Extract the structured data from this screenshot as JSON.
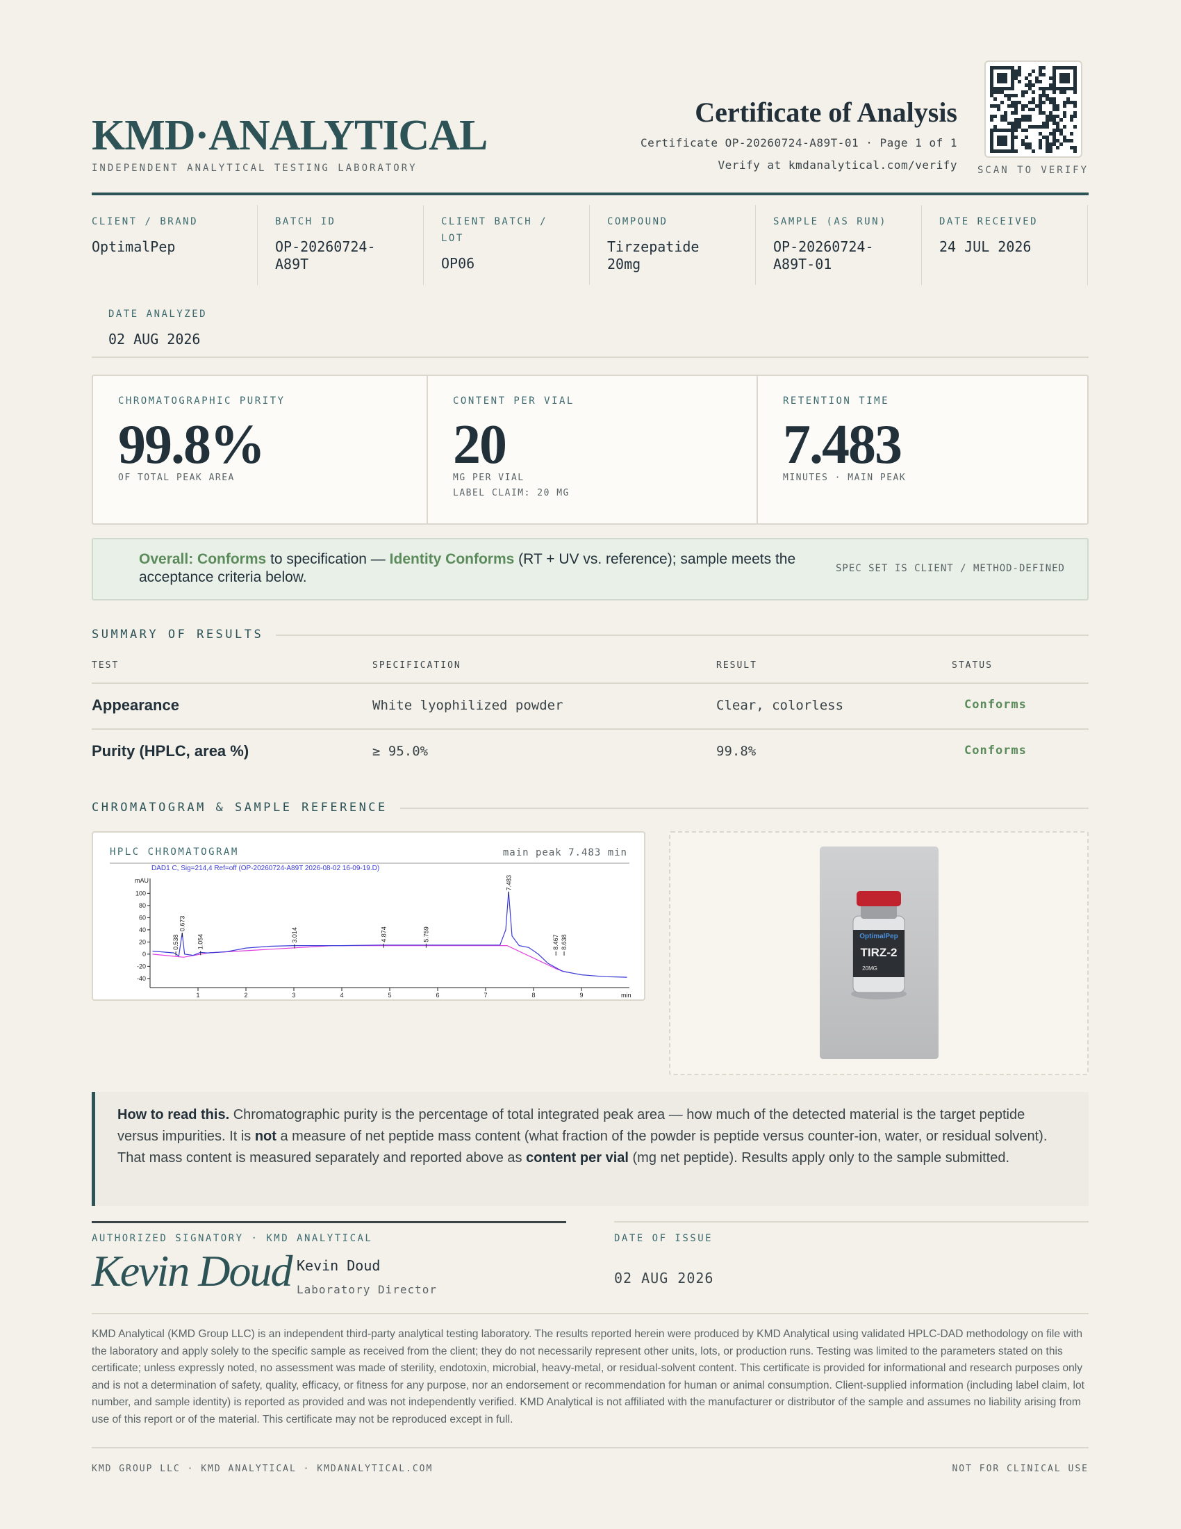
{
  "header": {
    "brand": "KMD·ANALYTICAL",
    "tagline": "INDEPENDENT ANALYTICAL TESTING LABORATORY",
    "title": "Certificate of Analysis",
    "certificate_line": "Certificate OP-20260724-A89T-01 · Page 1 of 1",
    "verify_line": "Verify at kmdanalytical.com/verify",
    "qr_caption": "SCAN TO VERIFY"
  },
  "info": [
    {
      "label": "CLIENT / BRAND",
      "value": "OptimalPep"
    },
    {
      "label": "BATCH ID",
      "value": "OP-20260724-A89T"
    },
    {
      "label": "CLIENT BATCH / LOT",
      "value": "OP06"
    },
    {
      "label": "COMPOUND",
      "value": "Tirzepatide 20mg"
    },
    {
      "label": "SAMPLE (AS RUN)",
      "value": "OP-20260724-A89T-01"
    },
    {
      "label": "DATE RECEIVED",
      "value": "24 JUL 2026"
    },
    {
      "label": "DATE ANALYZED",
      "value": "02 AUG 2026"
    }
  ],
  "metrics": [
    {
      "label": "CHROMATOGRAPHIC PURITY",
      "value": "99.8%",
      "notes": [
        "OF TOTAL PEAK AREA"
      ]
    },
    {
      "label": "CONTENT PER VIAL",
      "value": "20",
      "notes": [
        "MG PER VIAL",
        "LABEL CLAIM: 20 MG"
      ]
    },
    {
      "label": "RETENTION TIME",
      "value": "7.483",
      "notes": [
        "MINUTES · MAIN PEAK"
      ]
    }
  ],
  "verdict": {
    "overall": "Overall: Conforms",
    "text_1": "to specification —",
    "identity": "Identity Conforms",
    "text_2": "(RT + UV vs. reference); sample meets the acceptance criteria below.",
    "side_note": "SPEC SET IS CLIENT / METHOD-DEFINED"
  },
  "summary": {
    "heading": "SUMMARY OF RESULTS",
    "columns": [
      "TEST",
      "SPECIFICATION",
      "RESULT",
      "STATUS"
    ],
    "rows": [
      [
        "Appearance",
        "White lyophilized powder",
        "Clear, colorless",
        "Conforms"
      ],
      [
        "Purity (HPLC, area %)",
        "≥ 95.0%",
        "99.8%",
        "Conforms"
      ]
    ]
  },
  "chromatogram_section": {
    "heading": "CHROMATOGRAM & SAMPLE REFERENCE",
    "card_title": "HPLC CHROMATOGRAM",
    "card_note": "main peak 7.483 min",
    "plot": {
      "signal": "DAD1 C, Sig=214,4 Ref=off (OP-20260724-A89T 2026-08-02 16-09-19.D)",
      "y_unit": "mAU",
      "x_unit": "min",
      "xlim": [
        0,
        10
      ],
      "ylim": [
        -55,
        145
      ],
      "yticks": [
        100,
        80,
        60,
        40,
        20,
        0,
        -20,
        -40
      ],
      "xticks": [
        1,
        2,
        3,
        4,
        5,
        6,
        7,
        8,
        9
      ],
      "peaks": [
        0.538,
        0.673,
        1.054,
        3.014,
        4.874,
        5.759,
        7.483,
        8.467,
        8.638
      ],
      "trace": {
        "color": "#3b3bd6",
        "x": [
          0.05,
          0.5,
          0.6,
          0.67,
          0.72,
          0.9,
          1.05,
          1.2,
          1.6,
          2,
          2.5,
          3,
          4,
          4.8,
          5.5,
          6.5,
          7.3,
          7.42,
          7.48,
          7.55,
          7.7,
          7.9,
          8.1,
          8.3,
          8.6,
          9,
          9.5,
          9.95
        ],
        "y": [
          5,
          2,
          -3,
          35,
          0,
          -2,
          3,
          2,
          4,
          10,
          13,
          14,
          14,
          15,
          15,
          15,
          15,
          40,
          103,
          30,
          14,
          11,
          0,
          -15,
          -28,
          -34,
          -37,
          -38
        ]
      },
      "baseline": {
        "color": "#e040e0",
        "x": [
          0.05,
          0.7,
          1.2,
          3.8,
          7.45,
          8.5,
          8.7
        ],
        "y": [
          0,
          -5,
          2,
          14,
          14,
          -25,
          -30
        ]
      }
    },
    "sample_label": {
      "brand": "OptimalPep",
      "product": "TIRZ-2",
      "dose": "20MG"
    }
  },
  "note": {
    "lead": "How to read this.",
    "text_1": "Chromatographic purity is the percentage of total integrated peak area — how much of the detected material is the target peptide versus impurities. It is",
    "bold_1": "not",
    "text_2": "a measure of net peptide mass content (what fraction of the powder is peptide versus counter-ion, water, or residual solvent). That mass content is measured separately and reported above as",
    "bold_2": "content per vial",
    "text_3": "(mg net peptide). Results apply only to the sample submitted."
  },
  "signature": {
    "heading": "AUTHORIZED SIGNATORY · KMD ANALYTICAL",
    "script": "Kevin Doud",
    "name": "Kevin Doud",
    "role": "Laboratory Director",
    "date_heading": "DATE OF ISSUE",
    "date": "02 AUG 2026"
  },
  "disclaimer": "KMD Analytical (KMD Group LLC) is an independent third-party analytical testing laboratory. The results reported herein were produced by KMD Analytical using validated HPLC-DAD methodology on file with the laboratory and apply solely to the specific sample as received from the client; they do not necessarily represent other units, lots, or production runs. Testing was limited to the parameters stated on this certificate; unless expressly noted, no assessment was made of sterility, endotoxin, microbial, heavy-metal, or residual-solvent content. This certificate is provided for informational and research purposes only and is not a determination of safety, quality, efficacy, or fitness for any purpose, nor an endorsement or recommendation for human or animal consumption. Client-supplied information (including label claim, lot number, and sample identity) is reported as provided and was not independently verified. KMD Analytical is not affiliated with the manufacturer or distributor of the sample and assumes no liability arising from use of this report or of the material. This certificate may not be reproduced except in full.",
  "footer": {
    "left": "KMD GROUP LLC · KMD ANALYTICAL · KMDANALYTICAL.COM",
    "right": "NOT FOR CLINICAL USE"
  }
}
